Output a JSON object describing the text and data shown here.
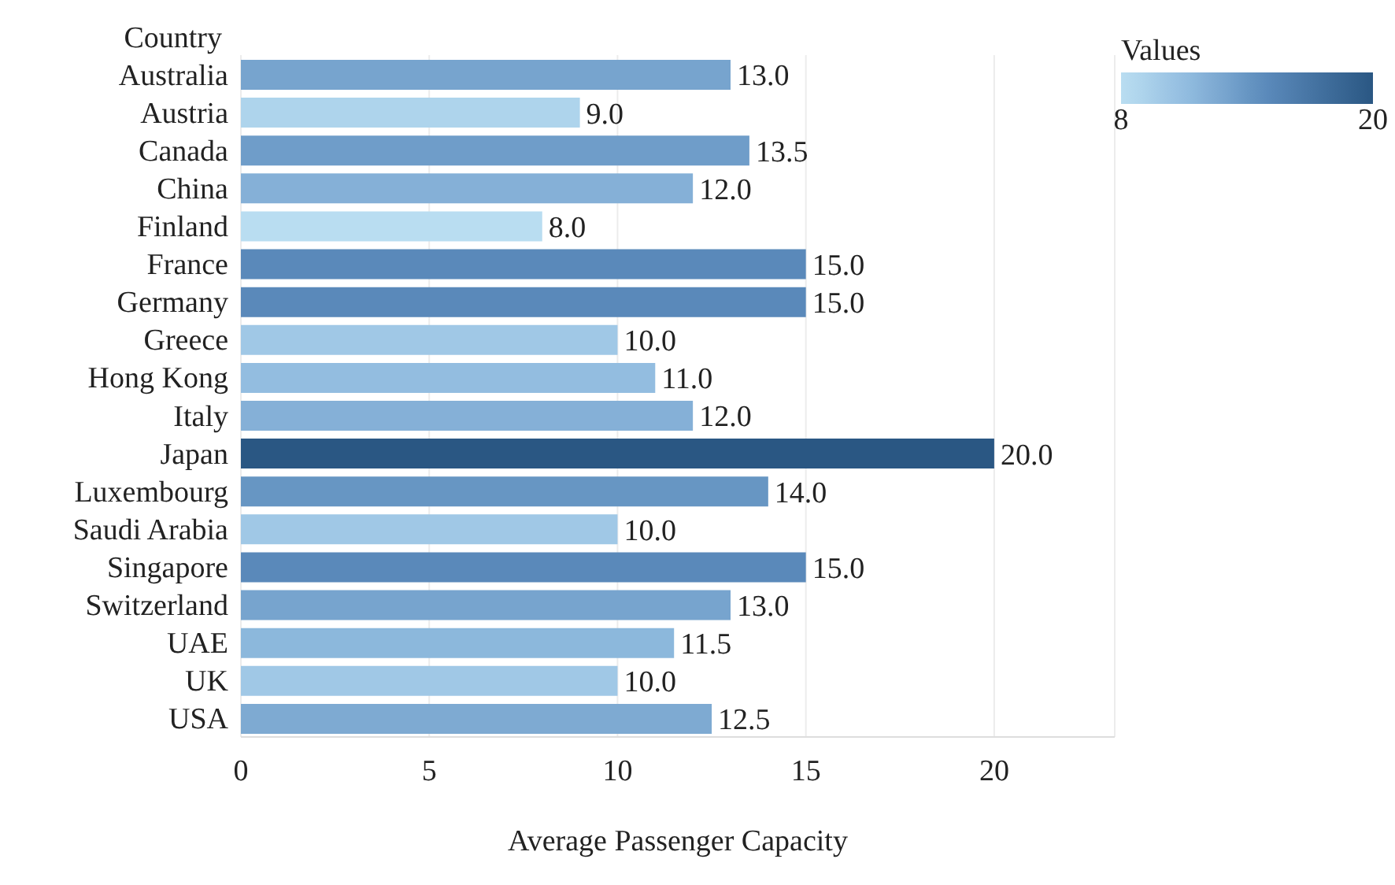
{
  "chart_data": {
    "type": "bar",
    "orientation": "horizontal",
    "ylabel": "Country",
    "xlabel": "Average Passenger Capacity",
    "clabel": "Values",
    "clim": [
      8,
      20
    ],
    "cticks": [
      8,
      20
    ],
    "categories": [
      "Australia",
      "Austria",
      "Canada",
      "China",
      "Finland",
      "France",
      "Germany",
      "Greece",
      "Hong Kong",
      "Italy",
      "Japan",
      "Luxembourg",
      "Saudi Arabia",
      "Singapore",
      "Switzerland",
      "UAE",
      "UK",
      "USA"
    ],
    "values": [
      13,
      9,
      13.5,
      12,
      8,
      15,
      15,
      10,
      11,
      12,
      20,
      14,
      10,
      15,
      13,
      11.5,
      10,
      12.5
    ],
    "value_labels": [
      "13.0",
      "9.0",
      "13.5",
      "12.0",
      "8.0",
      "15.0",
      "15.0",
      "10.0",
      "11.0",
      "12.0",
      "20.0",
      "14.0",
      "10.0",
      "15.0",
      "13.0",
      "11.5",
      "10.0",
      "12.5"
    ],
    "colors": [
      "#77a4ce",
      "#aed4ec",
      "#6f9dc9",
      "#85b0d7",
      "#b9ddf1",
      "#5a89ba",
      "#5a89ba",
      "#a0c8e6",
      "#93bde0",
      "#85b0d7",
      "#2a5783",
      "#6796c3",
      "#a0c8e6",
      "#5a89ba",
      "#77a4ce",
      "#8cb8dc",
      "#a0c8e6",
      "#7eaad2"
    ],
    "xlim": [
      0,
      23.2
    ],
    "xticks": [
      0,
      5,
      10,
      15,
      20
    ],
    "grid": "x"
  }
}
